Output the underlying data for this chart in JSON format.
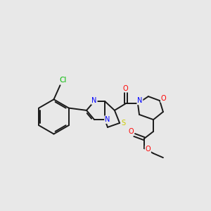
{
  "bg_color": "#e8e8e8",
  "bond_color": "#1a1a1a",
  "bond_width": 1.4,
  "atom_colors": {
    "N": "#0000ff",
    "O": "#ff0000",
    "S": "#cccc00",
    "Cl": "#00bb00",
    "C": "#1a1a1a"
  },
  "font_size": 7.0
}
